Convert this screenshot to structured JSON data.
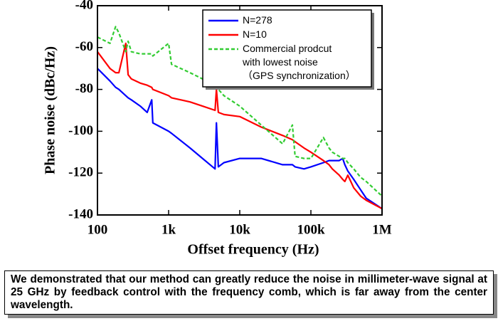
{
  "chart_data": {
    "type": "line",
    "xlabel": "Offset frequency (Hz)",
    "ylabel": "Phase noise (dBc/Hz)",
    "x": [
      100,
      150,
      180,
      200,
      250,
      270,
      300,
      400,
      500,
      580,
      600,
      1000,
      1100,
      2000,
      3000,
      4500,
      4700,
      5000,
      6000,
      10000,
      20000,
      40000,
      55000,
      60000,
      80000,
      100000,
      150000,
      180000,
      200000,
      250000,
      280000,
      300000,
      330000,
      400000,
      500000,
      600000,
      1000000
    ],
    "series": [
      {
        "name": "N=278",
        "color": "#0000ff",
        "values": [
          -70,
          -76,
          -79,
          -80,
          -83,
          -84,
          -85,
          -88,
          -91,
          -85,
          -96,
          -100,
          -101,
          -108,
          -113,
          -118,
          -96,
          -117,
          -115,
          -113,
          -113,
          -116,
          -116,
          -117,
          -118,
          -117,
          -115,
          -114,
          -114,
          -114,
          -113,
          -116,
          -119,
          -123,
          -128,
          -132,
          -137
        ]
      },
      {
        "name": "N=10",
        "color": "#ff0000",
        "values": [
          -62,
          -70,
          -72,
          -72,
          -58,
          -73,
          -75,
          -77,
          -78,
          -79,
          -80,
          -83,
          -84,
          -86,
          -88,
          -90,
          -80,
          -91,
          -92,
          -93,
          -98,
          -102,
          -104,
          -105,
          -108,
          -110,
          -114,
          -116,
          -118,
          -121,
          -123,
          -124,
          -121,
          -127,
          -131,
          -133,
          -137
        ]
      },
      {
        "name": "Commercial prodcut\nwith lowest noise\n（GPS synchronization）",
        "color": "#33cc33",
        "dashed": true,
        "values": [
          -55,
          -58,
          -50,
          -53,
          -62,
          -57,
          -62,
          -63,
          -63,
          -63,
          -64,
          -58,
          -68,
          -72,
          -75,
          -79,
          -79,
          -80,
          -83,
          -88,
          -97,
          -106,
          -97,
          -112,
          -113,
          -113,
          -103,
          -108,
          -110,
          -112,
          -113,
          -113,
          -115,
          -118,
          -122,
          -124,
          -131
        ]
      }
    ],
    "xscale": "log",
    "xlim": [
      100,
      1000000
    ],
    "xticks": [
      100,
      {
        "value": 1000,
        "label": "1k"
      },
      {
        "value": 10000,
        "label": "10k"
      },
      {
        "value": 100000,
        "label": "100k"
      },
      {
        "value": 1000000,
        "label": "1M"
      }
    ],
    "ylim": [
      -140,
      -40
    ],
    "yticks": [
      -140,
      -120,
      -100,
      -80,
      -60,
      -40
    ],
    "legend": "top-right"
  },
  "caption": "We demonstrated that our method can greatly reduce the noise in millimeter-wave signal at 25 GHz by feedback control with the frequency comb, which is far away from the center wavelength."
}
